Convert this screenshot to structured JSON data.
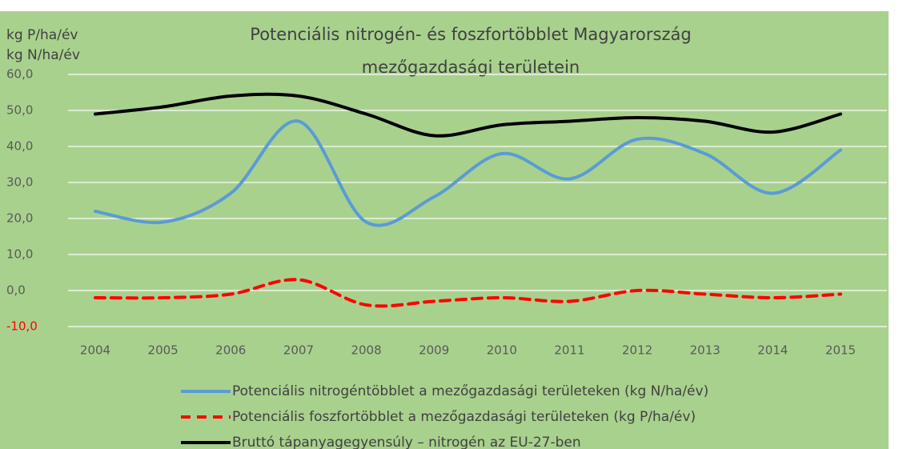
{
  "chart_data": {
    "type": "line",
    "title": [
      "Potenciális nitrogén- és foszfortöbblet Magyarország",
      "mezőgazdasági területein"
    ],
    "y_axis_label": [
      "kg P/ha/év",
      "kg N/ha/év"
    ],
    "categories": [
      "2004",
      "2005",
      "2006",
      "2007",
      "2008",
      "2009",
      "2010",
      "2011",
      "2012",
      "2013",
      "2014",
      "2015"
    ],
    "series": [
      {
        "name": "Potenciális nitrogéntöbblet a mezőgazdasági területeken (kg N/ha/év)",
        "color": "#5b9bd5",
        "dash": "solid",
        "values": [
          22,
          19,
          27,
          47,
          19,
          26,
          38,
          31,
          42,
          38,
          27,
          39
        ]
      },
      {
        "name": "Potenciális foszfortöbblet a mezőgazdasági területeken (kg P/ha/év)",
        "color": "#ff0000",
        "dash": "dashed",
        "values": [
          -2,
          -2,
          -1,
          3,
          -4,
          -3,
          -2,
          -3,
          0,
          -1,
          -2,
          -1
        ]
      },
      {
        "name": "Bruttó tápanyagegyensúly – nitrogén az EU-27-ben",
        "color": "#000000",
        "dash": "solid",
        "values": [
          49,
          51,
          54,
          54,
          49,
          43,
          46,
          47,
          48,
          47,
          44,
          49
        ]
      }
    ],
    "ylim": [
      -10,
      60
    ],
    "yticks": [
      {
        "value": -10,
        "label": "-10,0"
      },
      {
        "value": 0,
        "label": "0,0"
      },
      {
        "value": 10,
        "label": "10,0"
      },
      {
        "value": 20,
        "label": "20,0"
      },
      {
        "value": 30,
        "label": "30,0"
      },
      {
        "value": 40,
        "label": "40,0"
      },
      {
        "value": 50,
        "label": "50,0"
      },
      {
        "value": 60,
        "label": "60,0"
      }
    ],
    "grid": true,
    "legend": "bottom",
    "background": "#a9d18e"
  }
}
